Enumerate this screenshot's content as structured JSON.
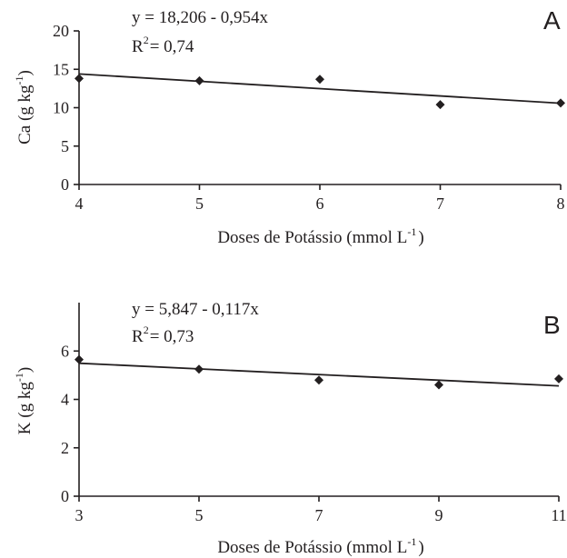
{
  "chart_data": [
    {
      "type": "scatter",
      "panel": "A",
      "equation": "y = 18,206 - 0,954x",
      "r2_prefix": "R",
      "r2_exp": "2",
      "r2_value": "= 0,74",
      "xlabel": "Doses de Potássio (mmol L",
      "xlabel_exp": "-1",
      "xlabel_close": ")",
      "ylabel": "Ca (g kg",
      "ylabel_exp": "-1",
      "ylabel_close": ")",
      "xlim": [
        4,
        8
      ],
      "ylim": [
        0,
        20
      ],
      "xticks": [
        4,
        5,
        6,
        7,
        8
      ],
      "yticks": [
        0,
        5,
        10,
        15,
        20
      ],
      "points": [
        {
          "x": 4,
          "y": 13.8
        },
        {
          "x": 5,
          "y": 13.5
        },
        {
          "x": 6,
          "y": 13.7
        },
        {
          "x": 7,
          "y": 10.4
        },
        {
          "x": 8,
          "y": 10.6
        }
      ],
      "trendline": {
        "intercept": 18.206,
        "slope": -0.954
      },
      "grid": false
    },
    {
      "type": "scatter",
      "panel": "B",
      "equation": "y = 5,847 - 0,117x",
      "r2_prefix": "R",
      "r2_exp": "2",
      "r2_value": "= 0,73",
      "xlabel": "Doses de Potássio (mmol L",
      "xlabel_exp": "-1",
      "xlabel_close": ")",
      "ylabel": "K (g kg",
      "ylabel_exp": "-1",
      "ylabel_close": ")",
      "xlim": [
        3,
        11
      ],
      "ylim": [
        0,
        8
      ],
      "xticks": [
        3,
        5,
        7,
        9,
        11
      ],
      "yticks": [
        0,
        2,
        4,
        6
      ],
      "points": [
        {
          "x": 3,
          "y": 5.65
        },
        {
          "x": 5,
          "y": 5.25
        },
        {
          "x": 7,
          "y": 4.8
        },
        {
          "x": 9,
          "y": 4.6
        },
        {
          "x": 11,
          "y": 4.85
        }
      ],
      "trendline": {
        "intercept": 5.847,
        "slope": -0.117
      },
      "grid": false
    }
  ]
}
